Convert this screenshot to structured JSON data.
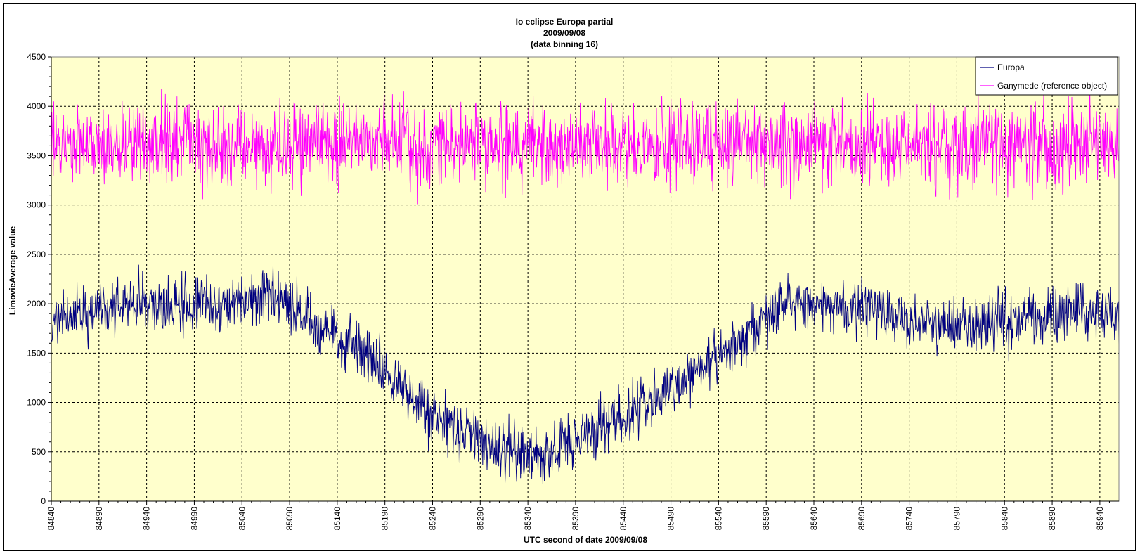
{
  "chart_data": {
    "type": "line",
    "title": [
      "Io eclipse Europa partial",
      "2009/09/08",
      "(data binning 16)"
    ],
    "xlabel": "UTC second  of date 2009/09/08",
    "ylabel": "LimovieAverage value",
    "xlim": [
      84840,
      85960
    ],
    "ylim": [
      0,
      4500
    ],
    "x_tick_labels": [
      "84840",
      "84890",
      "84940",
      "84990",
      "85040",
      "85090",
      "85140",
      "85190",
      "85240",
      "85290",
      "85340",
      "85390",
      "85440",
      "85490",
      "85540",
      "85590",
      "85640",
      "85690",
      "85740",
      "85790",
      "85840",
      "85890",
      "85940"
    ],
    "x_ticks": [
      84840,
      84890,
      84940,
      84990,
      85040,
      85090,
      85140,
      85190,
      85240,
      85290,
      85340,
      85390,
      85440,
      85490,
      85540,
      85590,
      85640,
      85690,
      85740,
      85790,
      85840,
      85890,
      85940
    ],
    "y_tick_labels": [
      "0",
      "500",
      "1000",
      "1500",
      "2000",
      "2500",
      "3000",
      "3500",
      "4000",
      "4500"
    ],
    "y_ticks": [
      0,
      500,
      1000,
      1500,
      2000,
      2500,
      3000,
      3500,
      4000,
      4500
    ],
    "grid": true,
    "legend_position": "top-right",
    "plot_background": "#ffffcc",
    "series": [
      {
        "name": "Europa",
        "color": "#000080",
        "x": [
          84840,
          84860,
          84880,
          84900,
          84920,
          84940,
          84960,
          84980,
          85000,
          85020,
          85040,
          85060,
          85080,
          85100,
          85120,
          85140,
          85160,
          85180,
          85200,
          85220,
          85240,
          85260,
          85280,
          85300,
          85320,
          85340,
          85360,
          85380,
          85400,
          85420,
          85440,
          85460,
          85480,
          85500,
          85520,
          85540,
          85560,
          85580,
          85600,
          85620,
          85640,
          85660,
          85680,
          85700,
          85720,
          85740,
          85760,
          85780,
          85800,
          85820,
          85840,
          85860,
          85880,
          85900,
          85920,
          85940,
          85960
        ],
        "y": [
          1850,
          1880,
          1900,
          1950,
          1980,
          2000,
          2000,
          1980,
          1990,
          2000,
          2010,
          2050,
          2100,
          1900,
          1750,
          1650,
          1550,
          1400,
          1200,
          1050,
          850,
          750,
          650,
          560,
          500,
          470,
          500,
          580,
          680,
          780,
          880,
          980,
          1050,
          1200,
          1350,
          1450,
          1600,
          1800,
          1950,
          2050,
          2050,
          2000,
          1950,
          1920,
          1900,
          1850,
          1820,
          1800,
          1800,
          1800,
          1820,
          1830,
          1850,
          1900,
          1950,
          1900,
          1880
        ]
      },
      {
        "name": "Ganymede (reference object)",
        "color": "#ff00ff",
        "x": [
          84840,
          84880,
          84920,
          84960,
          85000,
          85040,
          85080,
          85120,
          85160,
          85200,
          85240,
          85280,
          85320,
          85360,
          85400,
          85440,
          85480,
          85520,
          85560,
          85600,
          85640,
          85680,
          85720,
          85760,
          85800,
          85840,
          85880,
          85920,
          85960
        ],
        "y": [
          3600,
          3580,
          3600,
          3620,
          3610,
          3590,
          3600,
          3620,
          3610,
          3600,
          3590,
          3610,
          3600,
          3590,
          3600,
          3610,
          3600,
          3590,
          3600,
          3610,
          3600,
          3590,
          3600,
          3610,
          3600,
          3590,
          3600,
          3610,
          3600
        ]
      }
    ]
  }
}
